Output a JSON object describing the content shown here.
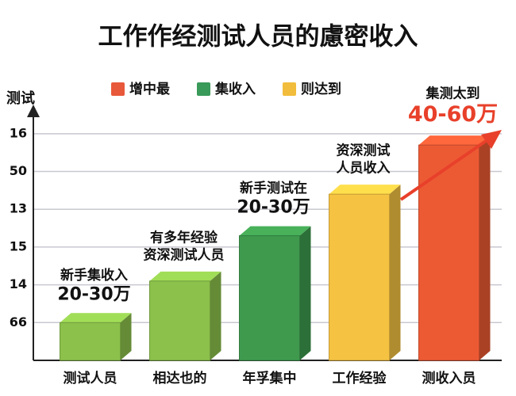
{
  "chart_data": {
    "type": "bar3d",
    "title": "工作作经测试人员的慮密收入",
    "y_label": "测试",
    "legend": [
      {
        "name": "增中最",
        "color": "#e8583a"
      },
      {
        "name": "集收入",
        "color": "#3a9a5a"
      },
      {
        "name": "则达到",
        "color": "#f2bd3c"
      }
    ],
    "categories": [
      "测试人员",
      "相达也的",
      "年孚集中",
      "工作经验",
      "测收入员"
    ],
    "values": [
      1.0,
      2.1,
      3.3,
      4.4,
      5.7
    ],
    "colors": [
      "#8cc14c",
      "#8cc14c",
      "#3f9a4e",
      "#f5c242",
      "#ec5a34"
    ],
    "annotations": [
      {
        "lines": [
          "新手集收入",
          "20-30万"
        ],
        "color": "#111111"
      },
      {
        "lines": [
          "有多年经验",
          "资深测试人员"
        ],
        "color": "#111111"
      },
      {
        "lines": [
          "新手测试在",
          "20-30万"
        ],
        "color": "#111111"
      },
      {
        "lines": [
          "资深测试",
          "人员收入"
        ],
        "color": "#111111"
      },
      {
        "lines": [
          "集测太到",
          "40-60万"
        ],
        "color": "#e8402a"
      }
    ],
    "ylim": [
      0,
      6.5
    ],
    "yticks": [
      {
        "value": 1,
        "label": "66"
      },
      {
        "value": 2,
        "label": "14"
      },
      {
        "value": 3,
        "label": "15"
      },
      {
        "value": 4,
        "label": "13"
      },
      {
        "value": 5,
        "label": "50"
      },
      {
        "value": 6,
        "label": "16"
      }
    ],
    "grid": true
  }
}
